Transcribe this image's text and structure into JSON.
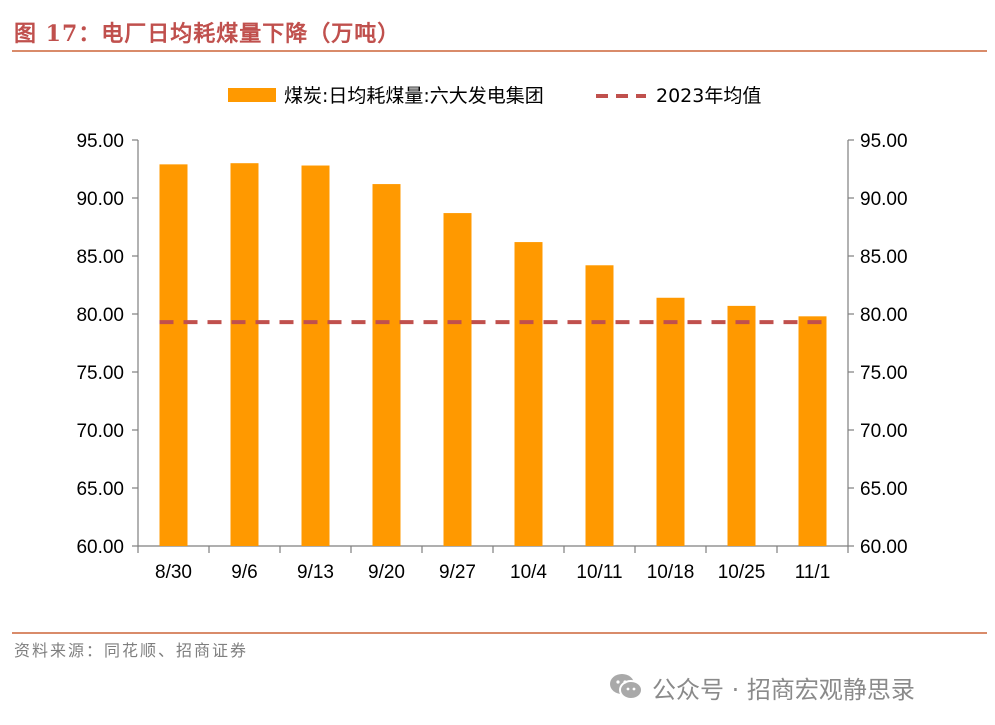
{
  "header": {
    "title": "图 17：电厂日均耗煤量下降（万吨）"
  },
  "footer": {
    "source": "资料来源：同花顺、招商证券"
  },
  "watermark": {
    "text": "公众号 · 招商宏观静思录",
    "icon": "wechat-icon"
  },
  "colors": {
    "bar": "#ff9900",
    "avg_line": "#c0504d",
    "title": "#c0504d",
    "axis": "#7f7f7f"
  },
  "chart_data": {
    "type": "bar",
    "categories": [
      "8/30",
      "9/6",
      "9/13",
      "9/20",
      "9/27",
      "10/4",
      "10/11",
      "10/18",
      "10/25",
      "11/1"
    ],
    "series": [
      {
        "name": "煤炭:日均耗煤量:六大发电集团",
        "type": "bar",
        "values": [
          92.9,
          93.0,
          92.8,
          91.2,
          88.7,
          86.2,
          84.2,
          81.4,
          80.7,
          79.8
        ]
      },
      {
        "name": "2023年均值",
        "type": "line-dashed",
        "values": [
          79.3,
          79.3,
          79.3,
          79.3,
          79.3,
          79.3,
          79.3,
          79.3,
          79.3,
          79.3
        ]
      }
    ],
    "ylim": [
      60,
      95
    ],
    "yticks": [
      "60.00",
      "65.00",
      "70.00",
      "75.00",
      "80.00",
      "85.00",
      "90.00",
      "95.00"
    ],
    "y2ticks": [
      "60.00",
      "65.00",
      "70.00",
      "75.00",
      "80.00",
      "85.00",
      "90.00",
      "95.00"
    ],
    "legend": "top",
    "grid": false
  }
}
